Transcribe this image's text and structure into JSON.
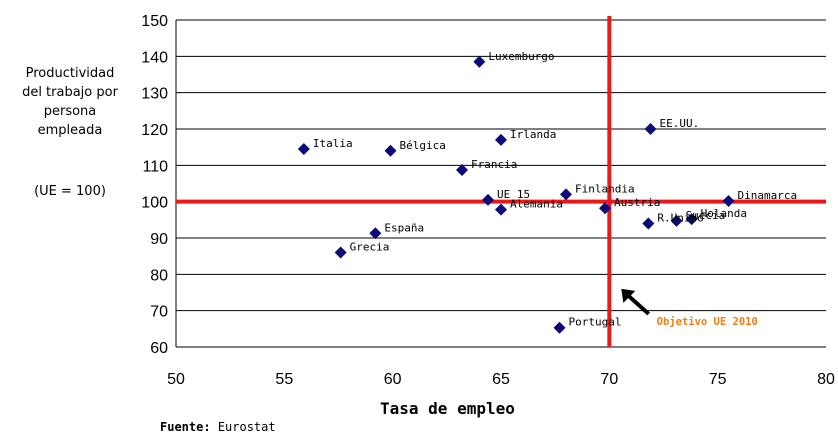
{
  "chart_data": {
    "type": "scatter",
    "ylabel": "Productividad del trabajo por persona empleada",
    "ylabel_unit": "(UE = 100)",
    "xlabel": "Tasa de empleo",
    "source_label": "Fuente:",
    "source_value": "Eurostat",
    "xlim": [
      50,
      80
    ],
    "ylim": [
      60,
      150
    ],
    "xticks": [
      50,
      55,
      60,
      65,
      70,
      75,
      80
    ],
    "yticks": [
      60,
      70,
      80,
      90,
      100,
      110,
      120,
      130,
      140,
      150
    ],
    "grid": "horizontal",
    "marker_color": "#0a0a78",
    "reference_color": "#e8191b",
    "annotation_color": "#f07d14",
    "reference_lines": {
      "x": 70,
      "y": 100
    },
    "annotation": {
      "text": "Objetivo UE 2010",
      "x": 72,
      "y": 68
    },
    "points": [
      {
        "label": "Luxemburgo",
        "x": 64.0,
        "y": 138.5
      },
      {
        "label": "EE.UU.",
        "x": 71.9,
        "y": 120.0
      },
      {
        "label": "Irlanda",
        "x": 65.0,
        "y": 117.0
      },
      {
        "label": "Italia",
        "x": 55.9,
        "y": 114.5
      },
      {
        "label": "Bélgica",
        "x": 59.9,
        "y": 114.0
      },
      {
        "label": "Francia",
        "x": 63.2,
        "y": 108.7
      },
      {
        "label": "UE 15",
        "x": 64.4,
        "y": 100.5
      },
      {
        "label": "Finlandia",
        "x": 68.0,
        "y": 102.0
      },
      {
        "label": "Dinamarca",
        "x": 75.5,
        "y": 100.2
      },
      {
        "label": "Alemania",
        "x": 65.0,
        "y": 97.8
      },
      {
        "label": "Austria",
        "x": 69.8,
        "y": 98.2
      },
      {
        "label": "Holanda",
        "x": 73.8,
        "y": 95.2
      },
      {
        "label": "Suecia",
        "x": 73.1,
        "y": 94.7
      },
      {
        "label": "R.Unido",
        "x": 71.8,
        "y": 94.0
      },
      {
        "label": "España",
        "x": 59.2,
        "y": 91.3
      },
      {
        "label": "Grecia",
        "x": 57.6,
        "y": 86.0
      },
      {
        "label": "Portugal",
        "x": 67.7,
        "y": 65.3
      }
    ]
  }
}
